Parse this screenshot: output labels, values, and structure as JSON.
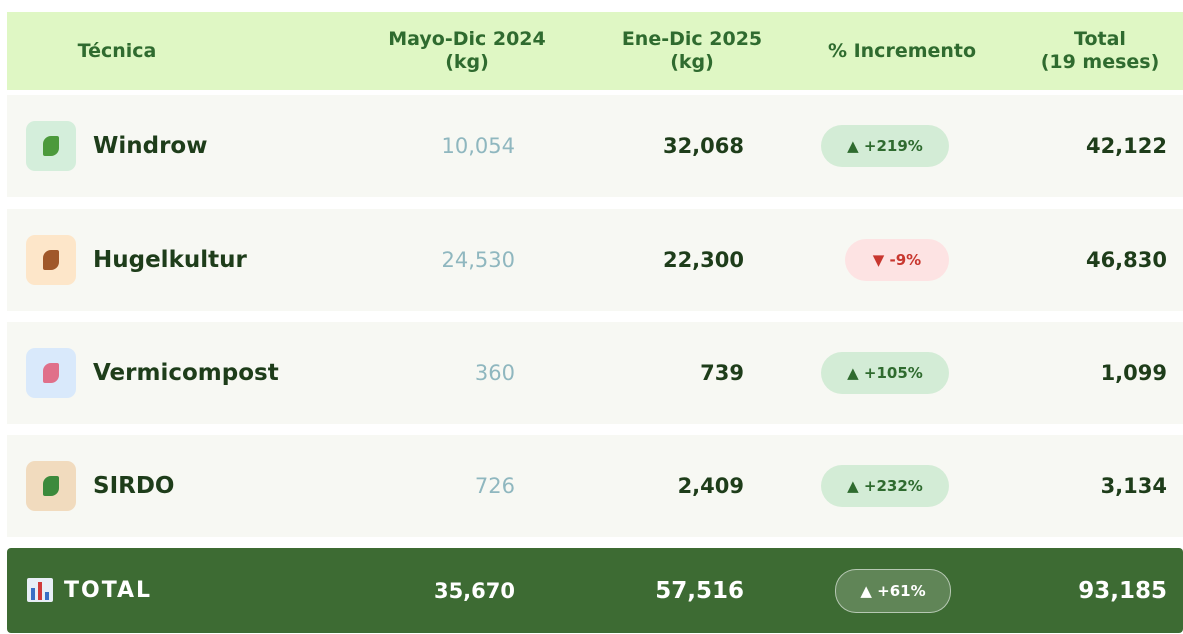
{
  "table": {
    "header": [
      "Técnica",
      "Mayo-Dic 2024\n(kg)",
      "Ene-Dic 2025\n(kg)",
      "% Incremento",
      "Total\n(19 meses)"
    ],
    "rows": [
      [
        "Windrow",
        "10,054",
        "32,068",
        "▲ +219%",
        "42,122"
      ],
      [
        "Hugelkultur",
        "24,530",
        "22,300",
        "▼ -9%",
        "46,830"
      ],
      [
        "Vermicompost",
        "360",
        "739",
        "▲ +105%",
        "1,099"
      ],
      [
        "SIRDO",
        "726",
        "2,409",
        "▲ +232%",
        "3,134"
      ]
    ],
    "total": [
      "TOTAL",
      "35,670",
      "57,516",
      "▲ +61%",
      "93,185"
    ]
  }
}
